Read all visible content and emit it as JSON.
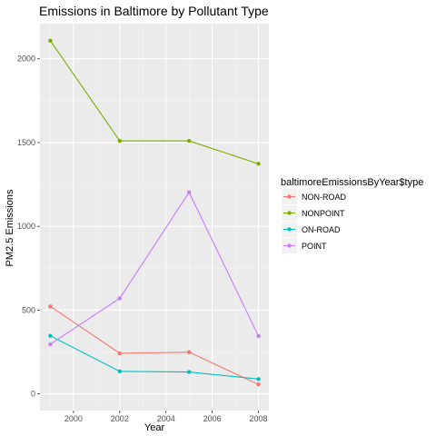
{
  "chart_data": {
    "type": "line",
    "title": "Emissions in Baltimore by Pollutant Type",
    "xlabel": "Year",
    "ylabel": "PM2.5 Emissions",
    "x": [
      1999,
      2002,
      2005,
      2008
    ],
    "xlim": [
      1998.55,
      2008.45
    ],
    "ylim": [
      -100,
      2210
    ],
    "xticks": [
      2000,
      2002,
      2004,
      2006,
      2008
    ],
    "yticks": [
      0,
      500,
      1000,
      1500,
      2000
    ],
    "grid": true,
    "legend": {
      "title": "baltimoreEmissionsByYear$type",
      "position": "right"
    },
    "series": [
      {
        "name": "NON-ROAD",
        "color": "#F8766D",
        "values": [
          522,
          242,
          249,
          56
        ]
      },
      {
        "name": "NONPOINT",
        "color": "#7CAE00",
        "values": [
          2108,
          1510,
          1510,
          1373
        ]
      },
      {
        "name": "ON-ROAD",
        "color": "#00BFC4",
        "values": [
          346,
          134,
          130,
          88
        ]
      },
      {
        "name": "POINT",
        "color": "#C77CFF",
        "values": [
          296,
          570,
          1203,
          345
        ]
      }
    ]
  }
}
